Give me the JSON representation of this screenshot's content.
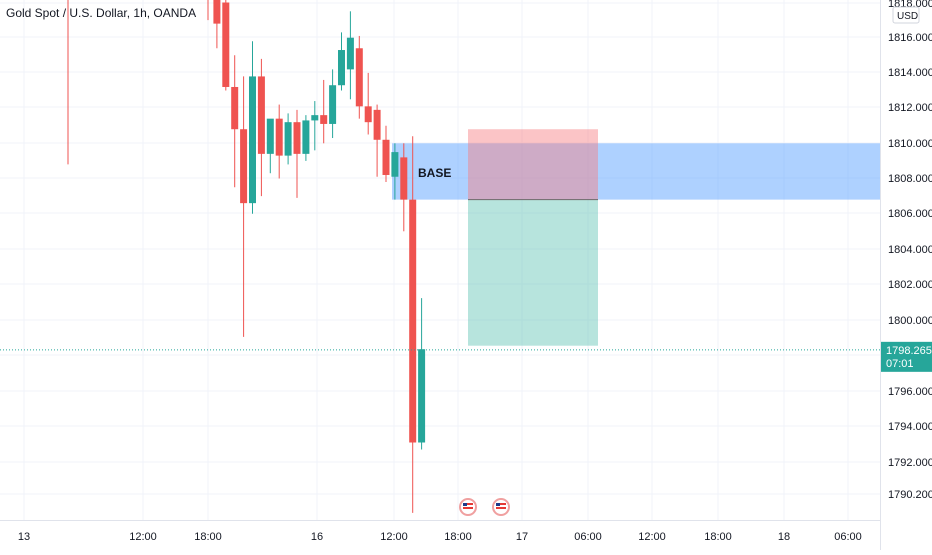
{
  "chart_title": "Gold Spot / U.S. Dollar, 1h, OANDA",
  "currency_badge": "USD",
  "colors": {
    "up": "#26a69a",
    "down": "#ef5350",
    "grid": "#f0f3fa",
    "axis_text": "#131722",
    "price_line": "#26a69a",
    "zone_blue": "#4c9aff",
    "stop_red": "#f77c80",
    "target_green": "#5fc4b4"
  },
  "zone_label": "BASE",
  "price_tag": {
    "value": "1798.265",
    "countdown": "07:01"
  },
  "chart_data": {
    "type": "candlestick",
    "title": "Gold Spot / U.S. Dollar, 1h, OANDA",
    "ylim": [
      1789,
      1819
    ],
    "y_ticks": [
      "1818.000",
      "1816.000",
      "1814.000",
      "1812.000",
      "1810.000",
      "1808.000",
      "1806.000",
      "1804.000",
      "1802.000",
      "1800.000",
      "1798.000",
      "1796.000",
      "1794.000",
      "1792.000",
      "1790.200"
    ],
    "x_ticks": [
      "13",
      "12:00",
      "18:00",
      "16",
      "12:00",
      "18:00",
      "17",
      "06:00",
      "12:00",
      "18:00",
      "18",
      "06:00"
    ],
    "grid": true,
    "candles": [
      {
        "t": "15 15:00",
        "o": 1819.8,
        "h": 1825.0,
        "l": 1817.0,
        "c": 1818.8
      },
      {
        "t": "15 16:00",
        "o": 1818.8,
        "h": 1819.5,
        "l": 1815.4,
        "c": 1816.8
      },
      {
        "t": "15 17:00",
        "o": 1818.0,
        "h": 1819.5,
        "l": 1813.0,
        "c": 1813.2
      },
      {
        "t": "15 18:00",
        "o": 1813.2,
        "h": 1815.0,
        "l": 1807.5,
        "c": 1810.8
      },
      {
        "t": "15 19:00",
        "o": 1810.8,
        "h": 1813.8,
        "l": 1799.0,
        "c": 1806.6
      },
      {
        "t": "15 20:00",
        "o": 1806.6,
        "h": 1815.8,
        "l": 1806.0,
        "c": 1813.8
      },
      {
        "t": "15 21:00",
        "o": 1813.8,
        "h": 1814.8,
        "l": 1807.0,
        "c": 1809.4
      },
      {
        "t": "15 22:00",
        "o": 1809.4,
        "h": 1811.3,
        "l": 1808.3,
        "c": 1811.4
      },
      {
        "t": "16 00:00",
        "o": 1811.4,
        "h": 1812.2,
        "l": 1808.0,
        "c": 1809.3
      },
      {
        "t": "16 01:00",
        "o": 1809.3,
        "h": 1811.7,
        "l": 1808.8,
        "c": 1811.2
      },
      {
        "t": "16 02:00",
        "o": 1811.2,
        "h": 1811.9,
        "l": 1806.9,
        "c": 1809.4
      },
      {
        "t": "16 03:00",
        "o": 1809.4,
        "h": 1811.6,
        "l": 1809.0,
        "c": 1811.3
      },
      {
        "t": "16 04:00",
        "o": 1811.3,
        "h": 1812.4,
        "l": 1809.6,
        "c": 1811.6
      },
      {
        "t": "16 05:00",
        "o": 1811.6,
        "h": 1813.6,
        "l": 1810.0,
        "c": 1811.1
      },
      {
        "t": "16 06:00",
        "o": 1811.1,
        "h": 1814.2,
        "l": 1810.3,
        "c": 1813.3
      },
      {
        "t": "16 07:00",
        "o": 1813.3,
        "h": 1816.3,
        "l": 1813.0,
        "c": 1815.3
      },
      {
        "t": "16 08:00",
        "o": 1814.2,
        "h": 1817.5,
        "l": 1812.5,
        "c": 1816.0
      },
      {
        "t": "16 09:00",
        "o": 1815.4,
        "h": 1816.1,
        "l": 1811.4,
        "c": 1812.1
      },
      {
        "t": "16 10:00",
        "o": 1812.1,
        "h": 1814.0,
        "l": 1810.5,
        "c": 1811.2
      },
      {
        "t": "16 11:00",
        "o": 1811.9,
        "h": 1812.2,
        "l": 1808.1,
        "c": 1810.2
      },
      {
        "t": "16 12:00",
        "o": 1810.2,
        "h": 1811.0,
        "l": 1807.8,
        "c": 1808.2
      },
      {
        "t": "16 13:00",
        "o": 1808.1,
        "h": 1810.0,
        "l": 1806.8,
        "c": 1809.5
      },
      {
        "t": "16 14:00",
        "o": 1809.2,
        "h": 1810.0,
        "l": 1805.0,
        "c": 1806.8
      },
      {
        "t": "16 15:00",
        "o": 1806.8,
        "h": 1810.4,
        "l": 1789.0,
        "c": 1793.0
      },
      {
        "t": "16 16:00",
        "o": 1793.0,
        "h": 1801.2,
        "l": 1792.6,
        "c": 1798.3
      }
    ],
    "annotations": [
      {
        "type": "rectangle",
        "label": "BASE",
        "y_top": 1810.0,
        "y_bottom": 1806.8,
        "color": "blue"
      },
      {
        "type": "short_position",
        "entry": 1806.8,
        "stop": 1810.8,
        "target": 1798.5
      },
      {
        "type": "horizontal_line",
        "y": 1798.265,
        "style": "dotted"
      }
    ],
    "last_price": 1798.265
  }
}
